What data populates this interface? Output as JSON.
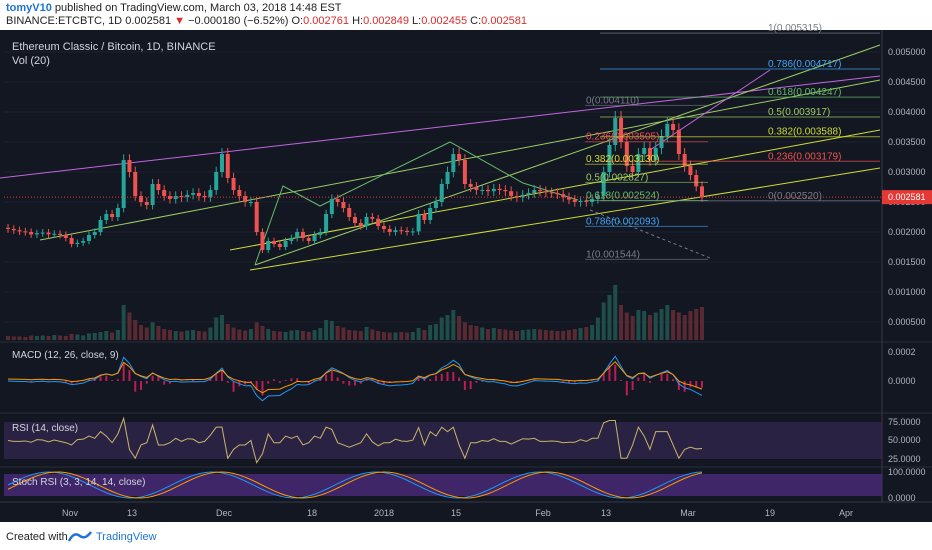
{
  "header": {
    "author": "tomyV10",
    "published_text": "published on TradingView.com, March 03, 2018 14:48 EST",
    "symbol": "BINANCE:ETCBTC, 1D",
    "last": "0.002581",
    "change_arrow": "▼",
    "change": "−0.000180 (−6.52%)",
    "o_label": "O:",
    "o": "0.002761",
    "h_label": "H:",
    "h": "0.002849",
    "l_label": "L:",
    "l": "0.002455",
    "c_label": "C:",
    "c": "0.002581"
  },
  "footer": {
    "created_with": "Created with",
    "brand": "TradingView"
  },
  "colors": {
    "bg": "#131722",
    "up": "#26a69a",
    "down": "#ef5350",
    "price_tag": "#e53935",
    "purple_pane": "#3b2a5a"
  },
  "chart_data": [
    {
      "type": "candlestick",
      "title": "Ethereum Classic / Bitcoin, 1D, BINANCE",
      "volume_label": "Vol (20)",
      "yaxis": [
        "0.005000",
        "0.004500",
        "0.004000",
        "0.003500",
        "0.003000",
        "0.002500",
        "0.002000",
        "0.001500",
        "0.001000",
        "0.000500"
      ],
      "ylim": [
        0.0002,
        0.0053
      ],
      "last_price": "0.002581",
      "xticks": [
        "Nov",
        "13",
        "Dec",
        "18",
        "2018",
        "15",
        "Feb",
        "13",
        "Mar",
        "19",
        "Apr"
      ],
      "fib_levels": [
        {
          "label": "1(0.005315)",
          "value": 0.005315,
          "color": "#787b86"
        },
        {
          "label": "0.786(0.004717)",
          "value": 0.004717,
          "color": "#42a5f5"
        },
        {
          "label": "0.618(0.004247)",
          "value": 0.004247,
          "color": "#66bb6a"
        },
        {
          "label": "0.5(0.003917)",
          "value": 0.003917,
          "color": "#9ccc65"
        },
        {
          "label": "0.382(0.003588)",
          "value": 0.003588,
          "color": "#cddc39"
        },
        {
          "label": "0.236(0.003179)",
          "value": 0.003179,
          "color": "#ef5350"
        },
        {
          "label": "0(0.002520)",
          "value": 0.00252,
          "color": "#787b86"
        }
      ],
      "fib_levels_2": [
        {
          "label": "0(0.004110)",
          "value": 0.00411,
          "color": "#787b86"
        },
        {
          "label": "0.236(0.003505)",
          "value": 0.003505,
          "color": "#ef5350"
        },
        {
          "label": "0.382(0.003130)",
          "value": 0.00313,
          "color": "#cddc39"
        },
        {
          "label": "0.5(0.002827)",
          "value": 0.002827,
          "color": "#9ccc65"
        },
        {
          "label": "0.618(0.002524)",
          "value": 0.002524,
          "color": "#66bb6a"
        },
        {
          "label": "0.786(0.002093)",
          "value": 0.002093,
          "color": "#42a5f5"
        },
        {
          "label": "1(0.001544)",
          "value": 0.001544,
          "color": "#787b86"
        }
      ],
      "closes": [
        0.00205,
        0.00203,
        0.00201,
        0.002,
        0.00196,
        0.00198,
        0.00199,
        0.00196,
        0.00197,
        0.00195,
        0.0019,
        0.0018,
        0.00182,
        0.00185,
        0.00195,
        0.002,
        0.0022,
        0.0023,
        0.00225,
        0.0024,
        0.0032,
        0.003,
        0.0026,
        0.0025,
        0.00245,
        0.0028,
        0.0027,
        0.0026,
        0.00255,
        0.0026,
        0.00258,
        0.00262,
        0.00265,
        0.0026,
        0.00258,
        0.0027,
        0.003,
        0.0033,
        0.0029,
        0.0027,
        0.0026,
        0.0025,
        0.0025,
        0.002,
        0.0017,
        0.00185,
        0.0018,
        0.00175,
        0.00185,
        0.0019,
        0.002,
        0.0019,
        0.00185,
        0.00195,
        0.002,
        0.0023,
        0.00255,
        0.0025,
        0.0024,
        0.00225,
        0.00215,
        0.0021,
        0.00225,
        0.00222,
        0.0021,
        0.00205,
        0.002,
        0.00203,
        0.00202,
        0.002,
        0.00201,
        0.0023,
        0.0022,
        0.0024,
        0.0025,
        0.0028,
        0.003,
        0.0033,
        0.0032,
        0.0028,
        0.00275,
        0.0027,
        0.0027,
        0.00268,
        0.00272,
        0.0027,
        0.00268,
        0.0026,
        0.00258,
        0.00262,
        0.00265,
        0.0027,
        0.00268,
        0.00266,
        0.00265,
        0.00263,
        0.00258,
        0.00254,
        0.0025,
        0.00252,
        0.0025,
        0.00255,
        0.0026,
        0.003,
        0.00345,
        0.0039,
        0.0035,
        0.0031,
        0.003,
        0.0033,
        0.0034,
        0.0032,
        0.0034,
        0.0036,
        0.0038,
        0.0037,
        0.0033,
        0.0031,
        0.00295,
        0.00276,
        0.00258
      ],
      "volumes": [
        8e-05,
        7e-05,
        7e-05,
        6e-05,
        9e-05,
        8e-05,
        9e-05,
        8e-05,
        0.0001,
        9e-05,
        8e-05,
        0.00012,
        0.00011,
        9e-05,
        0.00013,
        0.00014,
        0.00016,
        0.00018,
        0.00015,
        0.0002,
        0.0007,
        0.00055,
        0.0004,
        0.0003,
        0.00025,
        0.00035,
        0.00028,
        0.00022,
        0.0002,
        0.00018,
        0.00017,
        0.00019,
        0.0002,
        0.00018,
        0.00017,
        0.00025,
        0.00045,
        0.0005,
        0.00032,
        0.00025,
        0.00021,
        0.00019,
        0.00022,
        0.00035,
        0.00028,
        0.00022,
        0.00018,
        0.00017,
        0.00016,
        0.00019,
        0.0002,
        0.00018,
        0.00016,
        0.0002,
        0.00024,
        0.0004,
        0.00038,
        0.00028,
        0.00025,
        0.0002,
        0.00019,
        0.00018,
        0.00026,
        0.00021,
        0.00018,
        0.00016,
        0.00015,
        0.00015,
        0.00016,
        0.00015,
        0.00016,
        0.00024,
        0.0002,
        0.0003,
        0.00032,
        0.00045,
        0.0005,
        0.0006,
        0.00048,
        0.00035,
        0.0003,
        0.00028,
        0.00025,
        0.00022,
        0.00024,
        0.00022,
        0.00021,
        0.00019,
        0.00018,
        0.0002,
        0.00021,
        0.00022,
        0.00021,
        0.0002,
        0.00019,
        0.00018,
        0.00018,
        0.0002,
        0.00022,
        0.00024,
        0.00026,
        0.0003,
        0.00045,
        0.00075,
        0.0009,
        0.0011,
        0.0007,
        0.00055,
        0.00048,
        0.0006,
        0.00058,
        0.0005,
        0.00055,
        0.00062,
        0.0007,
        0.0006,
        0.00055,
        0.0005,
        0.00058,
        0.00062,
        0.00066
      ]
    },
    {
      "type": "line",
      "title": "MACD (12, 26, close, 9)",
      "yaxis": [
        "0.0002",
        "0.0000"
      ]
    },
    {
      "type": "line",
      "title": "RSI (14, close)",
      "yaxis": [
        "75.0000",
        "50.0000",
        "25.0000"
      ]
    },
    {
      "type": "line",
      "title": "Stoch RSI (3, 3, 14, 14, close)",
      "yaxis": [
        "100.0000",
        "0.0000"
      ]
    }
  ]
}
